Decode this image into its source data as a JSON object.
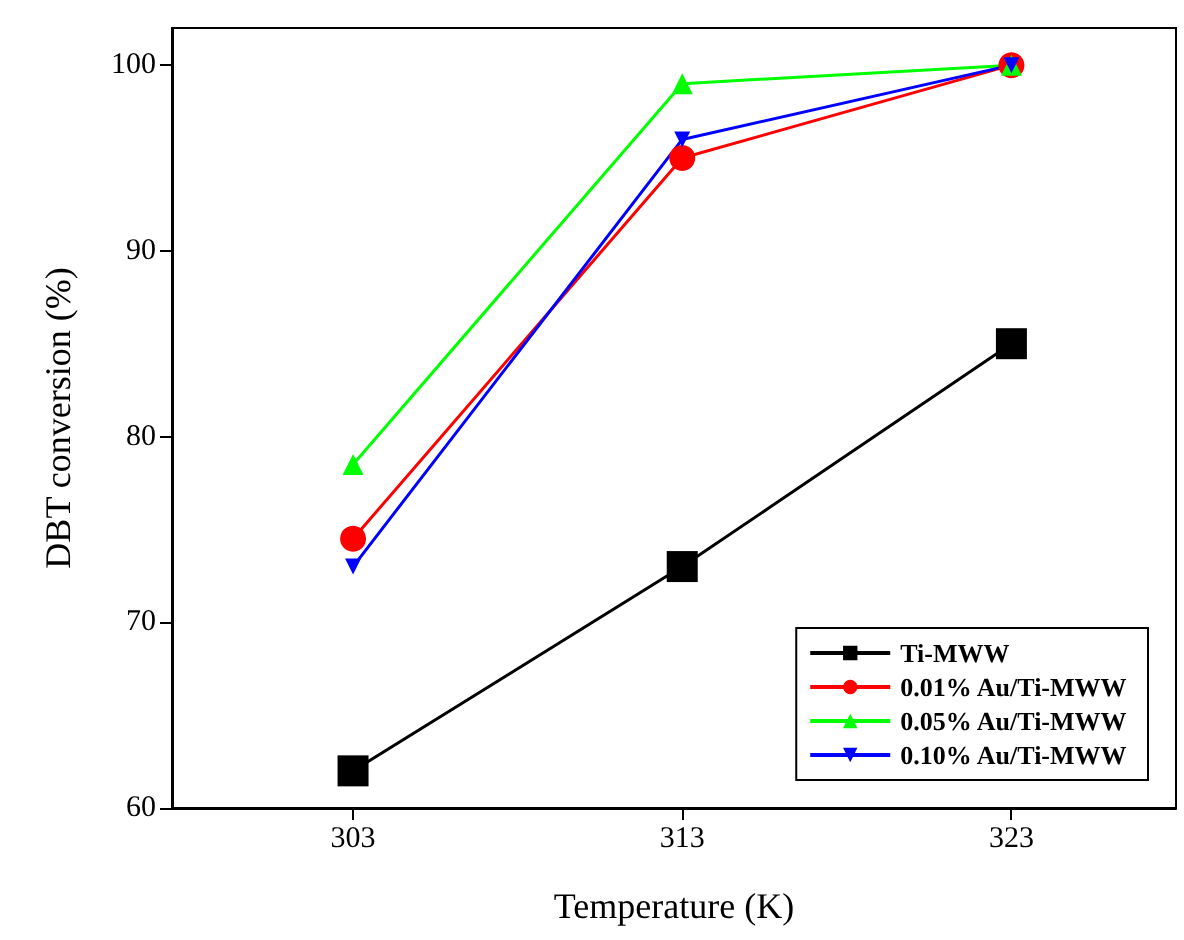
{
  "chart_data": {
    "type": "line",
    "xlabel": "Temperature (K)",
    "ylabel": "DBT conversion (%)",
    "x": [
      303,
      313,
      323
    ],
    "series": [
      {
        "name": "Ti-MWW",
        "color": "#000000",
        "marker": "square",
        "values": [
          62,
          73,
          85
        ]
      },
      {
        "name": "0.01% Au/Ti-MWW",
        "color": "#ff0000",
        "marker": "circle",
        "values": [
          74.5,
          95,
          100
        ]
      },
      {
        "name": "0.05% Au/Ti-MWW",
        "color": "#00ff00",
        "marker": "triangle",
        "values": [
          78.5,
          99,
          100
        ]
      },
      {
        "name": "0.10% Au/Ti-MWW",
        "color": "#0000ff",
        "marker": "triangle-down",
        "values": [
          73,
          96,
          100
        ]
      }
    ],
    "xlim": [
      297.5,
      328
    ],
    "xticks": [
      303,
      313,
      323
    ],
    "ylim": [
      60,
      102
    ],
    "yticks": [
      60,
      70,
      80,
      90,
      100
    ],
    "grid": false,
    "legend": "bottom right",
    "line_style": "solid"
  }
}
